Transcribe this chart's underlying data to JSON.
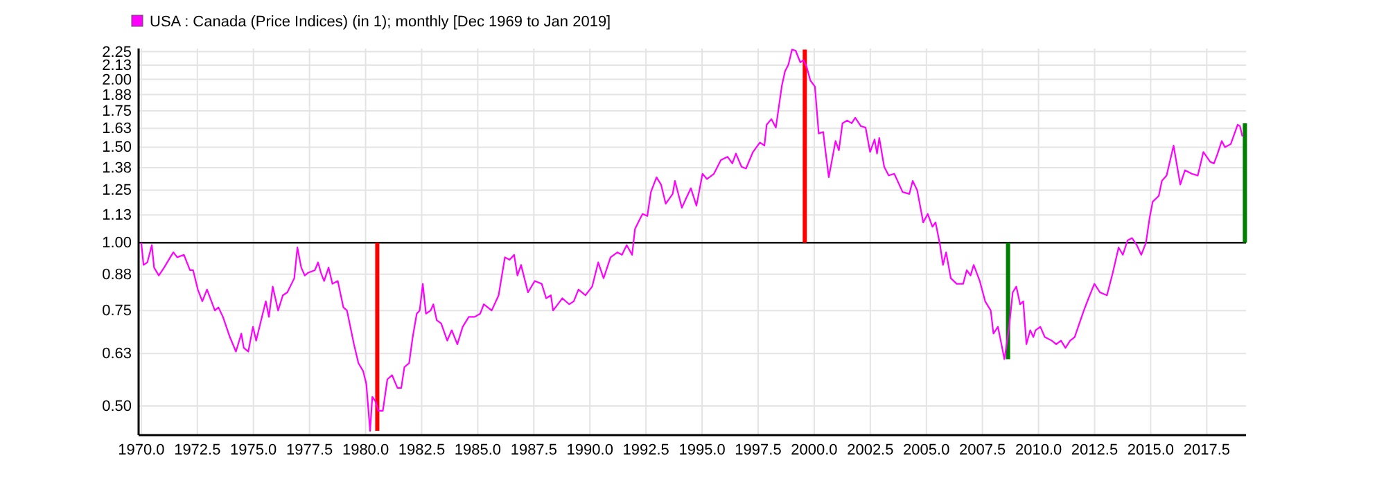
{
  "chart_data": {
    "type": "line",
    "log": "y",
    "grid": true,
    "legend": "top left",
    "xlim": [
      1969.88,
      2019.25
    ],
    "ylim": [
      0.442,
      2.28
    ],
    "xticks": [
      {
        "value": 1970,
        "label": "1970.0"
      },
      {
        "value": 1972.5,
        "label": "1972.5"
      },
      {
        "value": 1975,
        "label": "1975.0"
      },
      {
        "value": 1977.5,
        "label": "1977.5"
      },
      {
        "value": 1980,
        "label": "1980.0"
      },
      {
        "value": 1982.5,
        "label": "1982.5"
      },
      {
        "value": 1985,
        "label": "1985.0"
      },
      {
        "value": 1987.5,
        "label": "1987.5"
      },
      {
        "value": 1990,
        "label": "1990.0"
      },
      {
        "value": 1992.5,
        "label": "1992.5"
      },
      {
        "value": 1995,
        "label": "1995.0"
      },
      {
        "value": 1997.5,
        "label": "1997.5"
      },
      {
        "value": 2000,
        "label": "2000.0"
      },
      {
        "value": 2002.5,
        "label": "2002.5"
      },
      {
        "value": 2005,
        "label": "2005.0"
      },
      {
        "value": 2007.5,
        "label": "2007.5"
      },
      {
        "value": 2010,
        "label": "2010.0"
      },
      {
        "value": 2012.5,
        "label": "2012.5"
      },
      {
        "value": 2015,
        "label": "2015.0"
      },
      {
        "value": 2017.5,
        "label": "2017.5"
      }
    ],
    "yticks": [
      {
        "value": 0.5,
        "label": "0.50"
      },
      {
        "value": 0.625,
        "label": "0.63"
      },
      {
        "value": 0.75,
        "label": "0.75"
      },
      {
        "value": 0.875,
        "label": "0.88"
      },
      {
        "value": 1,
        "label": "1.00"
      },
      {
        "value": 1.125,
        "label": "1.13"
      },
      {
        "value": 1.25,
        "label": "1.25"
      },
      {
        "value": 1.375,
        "label": "1.38"
      },
      {
        "value": 1.5,
        "label": "1.50"
      },
      {
        "value": 1.625,
        "label": "1.63"
      },
      {
        "value": 1.75,
        "label": "1.75"
      },
      {
        "value": 1.875,
        "label": "1.88"
      },
      {
        "value": 2,
        "label": "2.00"
      },
      {
        "value": 2.125,
        "label": "2.13"
      },
      {
        "value": 2.25,
        "label": "2.25"
      }
    ],
    "ref_lines": [
      {
        "axis": "y",
        "value": 1,
        "color": "#000000"
      }
    ],
    "series": [
      {
        "name": "USA : Canada (Price Indices) (in 1); monthly [Dec 1969 to Jan 2019]",
        "color": "#ff00ff",
        "x": [
          1970.0,
          1970.1,
          1970.27,
          1970.47,
          1970.57,
          1970.78,
          1971.02,
          1971.29,
          1971.43,
          1971.6,
          1971.9,
          1972.17,
          1972.31,
          1972.52,
          1972.72,
          1972.93,
          1973.28,
          1973.44,
          1973.64,
          1973.95,
          1974.22,
          1974.46,
          1974.57,
          1974.77,
          1974.98,
          1975.12,
          1975.38,
          1975.55,
          1975.69,
          1975.86,
          1976.1,
          1976.31,
          1976.51,
          1976.82,
          1976.96,
          1977.13,
          1977.29,
          1977.43,
          1977.74,
          1977.88,
          1978.01,
          1978.15,
          1978.35,
          1978.52,
          1978.76,
          1979.01,
          1979.17,
          1979.48,
          1979.68,
          1979.89,
          1980.03,
          1980.2,
          1980.3,
          1980.44,
          1980.57,
          1980.77,
          1980.97,
          1981.18,
          1981.42,
          1981.59,
          1981.73,
          1981.94,
          1982.1,
          1982.28,
          1982.41,
          1982.55,
          1982.69,
          1982.9,
          1983.02,
          1983.17,
          1983.37,
          1983.64,
          1983.84,
          1984.09,
          1984.33,
          1984.6,
          1984.86,
          1985.11,
          1985.27,
          1985.62,
          1985.93,
          1986.21,
          1986.42,
          1986.62,
          1986.77,
          1986.93,
          1987.24,
          1987.54,
          1987.85,
          1988.05,
          1988.26,
          1988.36,
          1988.57,
          1988.77,
          1989.08,
          1989.28,
          1989.49,
          1989.8,
          1990.1,
          1990.37,
          1990.61,
          1990.92,
          1991.23,
          1991.43,
          1991.64,
          1991.88,
          1992.01,
          1992.25,
          1992.35,
          1992.56,
          1992.72,
          1992.97,
          1993.17,
          1993.38,
          1993.69,
          1993.79,
          1994.1,
          1994.3,
          1994.5,
          1994.75,
          1995.02,
          1995.22,
          1995.53,
          1995.84,
          1996.14,
          1996.35,
          1996.51,
          1996.76,
          1996.96,
          1997.27,
          1997.58,
          1997.78,
          1997.88,
          1998.09,
          1998.29,
          1998.56,
          1998.7,
          1998.85,
          1999.01,
          1999.17,
          1999.38,
          1999.52,
          1999.66,
          1999.83,
          2000.03,
          2000.2,
          2000.4,
          2000.48,
          2000.65,
          2000.95,
          2001.1,
          2001.26,
          2001.47,
          2001.67,
          2001.83,
          2002.08,
          2002.29,
          2002.49,
          2002.69,
          2002.8,
          2002.9,
          2003.12,
          2003.32,
          2003.57,
          2003.94,
          2004.24,
          2004.39,
          2004.59,
          2004.86,
          2005.06,
          2005.27,
          2005.41,
          2005.61,
          2005.74,
          2005.88,
          2006.09,
          2006.35,
          2006.64,
          2006.8,
          2006.97,
          2007.11,
          2007.38,
          2007.62,
          2007.87,
          2007.99,
          2008.19,
          2008.48,
          2008.69,
          2008.85,
          2009.01,
          2009.18,
          2009.32,
          2009.46,
          2009.63,
          2009.77,
          2009.87,
          2010.08,
          2010.28,
          2010.59,
          2010.79,
          2011.0,
          2011.2,
          2011.41,
          2011.61,
          2011.82,
          2012.02,
          2012.23,
          2012.49,
          2012.74,
          2013.05,
          2013.31,
          2013.57,
          2013.76,
          2013.97,
          2014.17,
          2014.38,
          2014.58,
          2014.79,
          2014.95,
          2015.09,
          2015.36,
          2015.5,
          2015.71,
          2016.02,
          2016.32,
          2016.53,
          2016.83,
          2017.1,
          2017.35,
          2017.65,
          2017.82,
          2017.96,
          2018.17,
          2018.31,
          2018.57,
          2018.88,
          2018.98,
          2019.09
        ],
        "values": [
          1.0,
          0.91,
          0.92,
          0.99,
          0.9,
          0.87,
          0.9,
          0.94,
          0.96,
          0.94,
          0.95,
          0.89,
          0.89,
          0.82,
          0.78,
          0.82,
          0.75,
          0.76,
          0.73,
          0.67,
          0.63,
          0.68,
          0.64,
          0.63,
          0.7,
          0.66,
          0.73,
          0.78,
          0.73,
          0.83,
          0.75,
          0.8,
          0.81,
          0.86,
          0.98,
          0.9,
          0.87,
          0.88,
          0.89,
          0.92,
          0.88,
          0.85,
          0.9,
          0.84,
          0.85,
          0.76,
          0.75,
          0.65,
          0.6,
          0.58,
          0.55,
          0.45,
          0.52,
          0.51,
          0.49,
          0.49,
          0.56,
          0.57,
          0.54,
          0.54,
          0.59,
          0.6,
          0.67,
          0.74,
          0.75,
          0.84,
          0.74,
          0.75,
          0.77,
          0.72,
          0.71,
          0.66,
          0.69,
          0.65,
          0.7,
          0.73,
          0.73,
          0.74,
          0.77,
          0.75,
          0.8,
          0.94,
          0.93,
          0.95,
          0.87,
          0.91,
          0.81,
          0.85,
          0.84,
          0.79,
          0.8,
          0.75,
          0.77,
          0.79,
          0.77,
          0.78,
          0.82,
          0.8,
          0.83,
          0.92,
          0.86,
          0.94,
          0.96,
          0.95,
          0.99,
          0.95,
          1.06,
          1.11,
          1.13,
          1.12,
          1.24,
          1.32,
          1.28,
          1.18,
          1.23,
          1.3,
          1.16,
          1.21,
          1.26,
          1.17,
          1.34,
          1.31,
          1.34,
          1.42,
          1.44,
          1.4,
          1.46,
          1.38,
          1.37,
          1.47,
          1.53,
          1.51,
          1.65,
          1.69,
          1.63,
          1.95,
          2.07,
          2.13,
          2.27,
          2.26,
          2.15,
          2.17,
          2.11,
          1.99,
          1.94,
          1.59,
          1.6,
          1.5,
          1.32,
          1.54,
          1.48,
          1.66,
          1.68,
          1.66,
          1.7,
          1.64,
          1.63,
          1.47,
          1.55,
          1.46,
          1.56,
          1.38,
          1.33,
          1.34,
          1.24,
          1.23,
          1.3,
          1.25,
          1.09,
          1.13,
          1.07,
          1.09,
          0.99,
          0.91,
          0.96,
          0.86,
          0.84,
          0.84,
          0.89,
          0.87,
          0.91,
          0.85,
          0.78,
          0.75,
          0.68,
          0.7,
          0.61,
          0.7,
          0.81,
          0.83,
          0.77,
          0.78,
          0.65,
          0.69,
          0.67,
          0.69,
          0.7,
          0.67,
          0.66,
          0.65,
          0.66,
          0.64,
          0.66,
          0.67,
          0.71,
          0.75,
          0.79,
          0.84,
          0.81,
          0.8,
          0.88,
          0.98,
          0.95,
          1.01,
          1.02,
          0.99,
          0.95,
          1.0,
          1.11,
          1.19,
          1.22,
          1.3,
          1.33,
          1.51,
          1.28,
          1.36,
          1.34,
          1.33,
          1.47,
          1.41,
          1.4,
          1.45,
          1.54,
          1.5,
          1.52,
          1.65,
          1.64,
          1.57
        ]
      },
      {
        "type": "bar",
        "x": [
          1980.52,
          1999.58,
          2008.64,
          2019.2
        ],
        "base": [
          1,
          1,
          1,
          1
        ],
        "values": [
          -0.55,
          1.27,
          -0.39,
          0.66
        ],
        "colors": [
          "#ff0000",
          "#ff0000",
          "#008000",
          "#008000"
        ]
      }
    ]
  }
}
